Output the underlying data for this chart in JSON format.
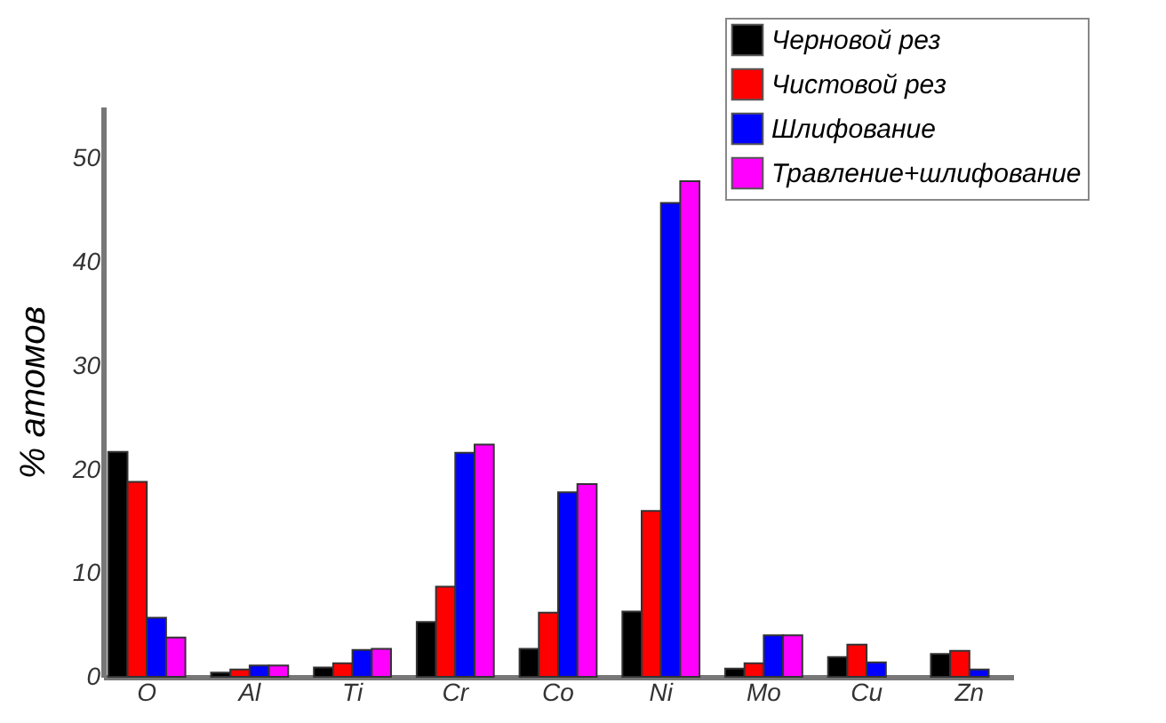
{
  "chart_data": {
    "type": "bar",
    "ylabel": "% атомов",
    "categories": [
      "O",
      "Al",
      "Ti",
      "Cr",
      "Co",
      "Ni",
      "Mo",
      "Cu",
      "Zn"
    ],
    "series": [
      {
        "name": "Черновой рез",
        "color": "#000000",
        "values": [
          21.7,
          0.4,
          0.9,
          5.3,
          2.7,
          6.3,
          0.8,
          1.9,
          2.2
        ]
      },
      {
        "name": "Чистовой рез",
        "color": "#ff0000",
        "values": [
          18.8,
          0.7,
          1.3,
          8.7,
          6.2,
          16.0,
          1.3,
          3.1,
          2.5
        ]
      },
      {
        "name": "Шлифование",
        "color": "#0000ff",
        "values": [
          5.7,
          1.1,
          2.6,
          21.6,
          17.8,
          45.7,
          4.0,
          1.4,
          0.7
        ]
      },
      {
        "name": "Травление+шлифование",
        "color": "#ff00ff",
        "values": [
          3.8,
          1.1,
          2.7,
          22.4,
          18.6,
          47.8,
          4.0,
          null,
          null
        ]
      }
    ],
    "ylim": [
      0,
      55
    ],
    "yticks": [
      0,
      10,
      20,
      30,
      40,
      50
    ],
    "legend": "top right"
  }
}
